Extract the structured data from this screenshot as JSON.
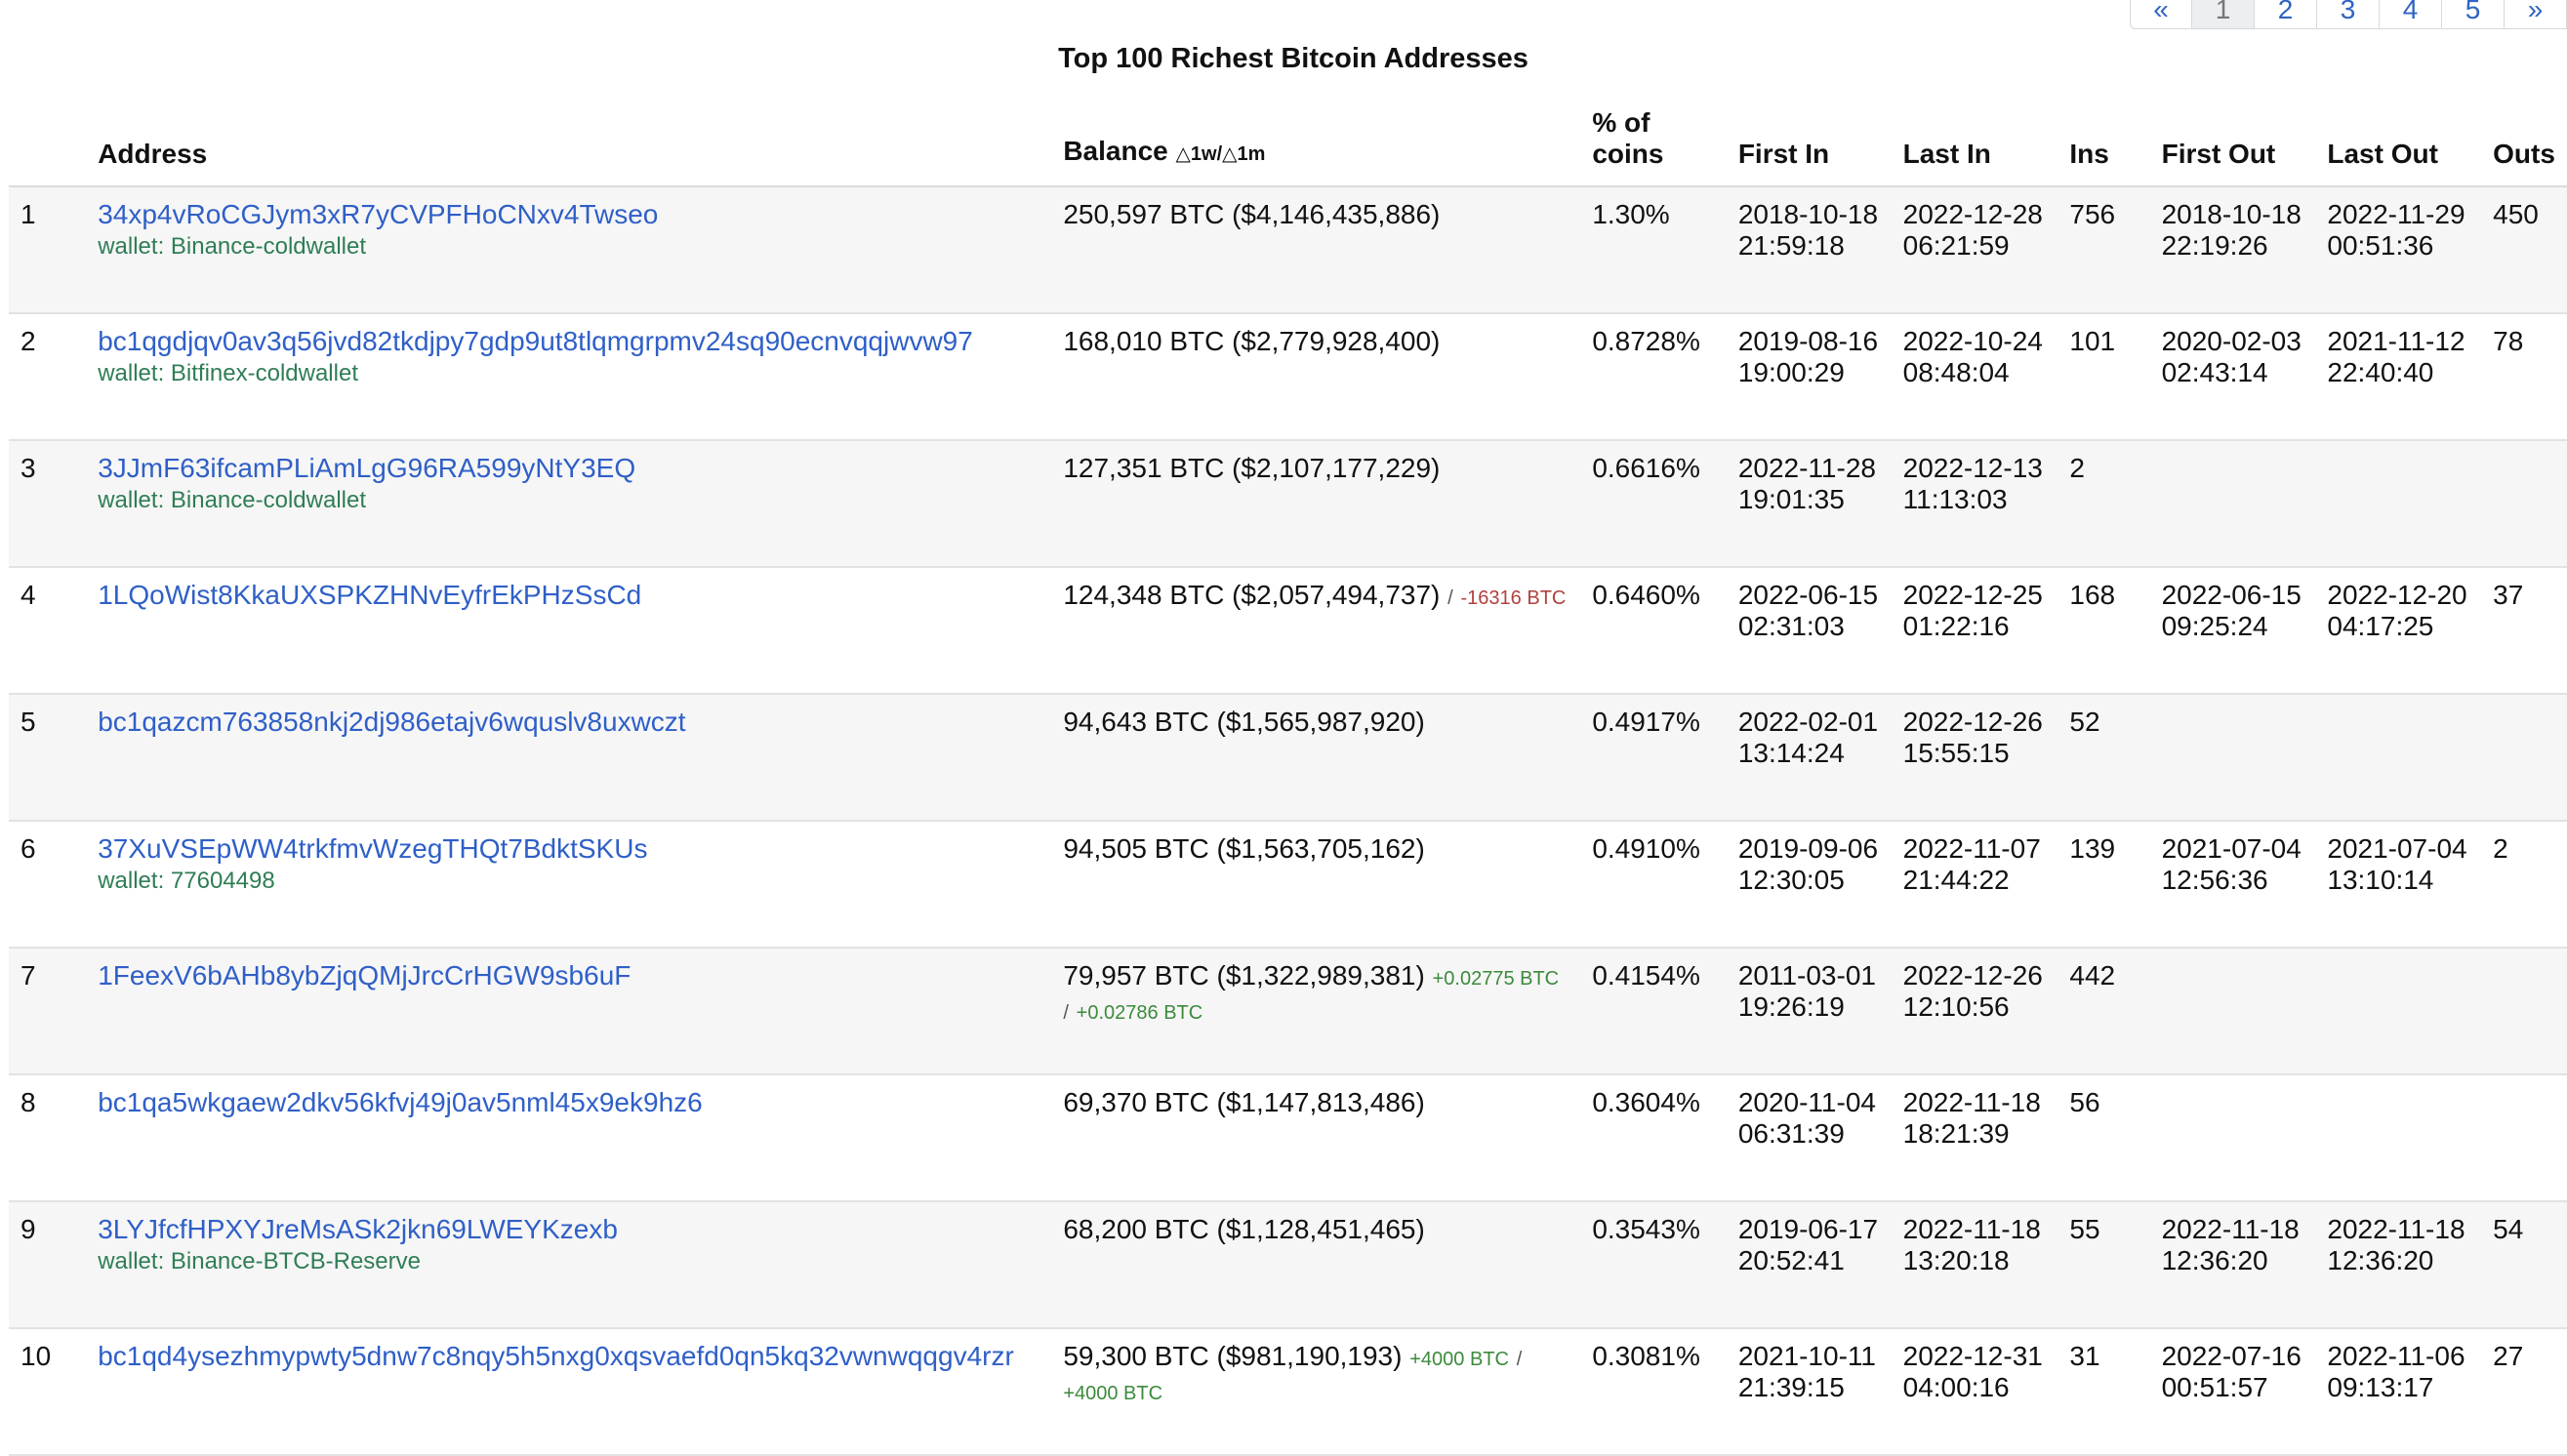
{
  "pagination": {
    "prev": "«",
    "pages": [
      "1",
      "2",
      "3",
      "4",
      "5"
    ],
    "next": "»",
    "current": "1"
  },
  "title": "Top 100 Richest Bitcoin Addresses",
  "columns": {
    "rank": "",
    "address": "Address",
    "balance": "Balance",
    "balance_delta": "△1w/△1m",
    "pct": "% of coins",
    "first_in": "First In",
    "last_in": "Last In",
    "ins": "Ins",
    "first_out": "First Out",
    "last_out": "Last Out",
    "outs": "Outs"
  },
  "rows": [
    {
      "rank": "1",
      "address": "34xp4vRoCGJym3xR7yCVPFHoCNxv4Twseo",
      "wallet": "wallet: Binance-coldwallet",
      "balance": "250,597 BTC ($4,146,435,886)",
      "chg1": "",
      "chg1_sign": "",
      "chg_sep": "",
      "chg2": "",
      "chg2_sign": "",
      "pct": "1.30%",
      "first_in": "2018-10-18 21:59:18",
      "last_in": "2022-12-28 06:21:59",
      "ins": "756",
      "first_out": "2018-10-18 22:19:26",
      "last_out": "2022-11-29 00:51:36",
      "outs": "450"
    },
    {
      "rank": "2",
      "address": "bc1qgdjqv0av3q56jvd82tkdjpy7gdp9ut8tlqmgrpmv24sq90ecnvqqjwvw97",
      "wallet": "wallet: Bitfinex-coldwallet",
      "balance": "168,010 BTC ($2,779,928,400)",
      "chg1": "",
      "chg1_sign": "",
      "chg_sep": "",
      "chg2": "",
      "chg2_sign": "",
      "pct": "0.8728%",
      "first_in": "2019-08-16 19:00:29",
      "last_in": "2022-10-24 08:48:04",
      "ins": "101",
      "first_out": "2020-02-03 02:43:14",
      "last_out": "2021-11-12 22:40:40",
      "outs": "78"
    },
    {
      "rank": "3",
      "address": "3JJmF63ifcamPLiAmLgG96RA599yNtY3EQ",
      "wallet": "wallet: Binance-coldwallet",
      "balance": "127,351 BTC ($2,107,177,229)",
      "chg1": "",
      "chg1_sign": "",
      "chg_sep": "",
      "chg2": "",
      "chg2_sign": "",
      "pct": "0.6616%",
      "first_in": "2022-11-28 19:01:35",
      "last_in": "2022-12-13 11:13:03",
      "ins": "2",
      "first_out": "",
      "last_out": "",
      "outs": ""
    },
    {
      "rank": "4",
      "address": "1LQoWist8KkaUXSPKZHNvEyfrEkPHzSsCd",
      "wallet": "",
      "balance": "124,348 BTC ($2,057,494,737)",
      "chg1": "/",
      "chg1_sign": "sep",
      "chg_sep": "",
      "chg2": "-16316 BTC",
      "chg2_sign": "neg",
      "pct": "0.6460%",
      "first_in": "2022-06-15 02:31:03",
      "last_in": "2022-12-25 01:22:16",
      "ins": "168",
      "first_out": "2022-06-15 09:25:24",
      "last_out": "2022-12-20 04:17:25",
      "outs": "37"
    },
    {
      "rank": "5",
      "address": "bc1qazcm763858nkj2dj986etajv6wquslv8uxwczt",
      "wallet": "",
      "balance": "94,643 BTC ($1,565,987,920)",
      "chg1": "",
      "chg1_sign": "",
      "chg_sep": "",
      "chg2": "",
      "chg2_sign": "",
      "pct": "0.4917%",
      "first_in": "2022-02-01 13:14:24",
      "last_in": "2022-12-26 15:55:15",
      "ins": "52",
      "first_out": "",
      "last_out": "",
      "outs": ""
    },
    {
      "rank": "6",
      "address": "37XuVSEpWW4trkfmvWzegTHQt7BdktSKUs",
      "wallet": "wallet: 77604498",
      "balance": "94,505 BTC ($1,563,705,162)",
      "chg1": "",
      "chg1_sign": "",
      "chg_sep": "",
      "chg2": "",
      "chg2_sign": "",
      "pct": "0.4910%",
      "first_in": "2019-09-06 12:30:05",
      "last_in": "2022-11-07 21:44:22",
      "ins": "139",
      "first_out": "2021-07-04 12:56:36",
      "last_out": "2021-07-04 13:10:14",
      "outs": "2"
    },
    {
      "rank": "7",
      "address": "1FeexV6bAHb8ybZjqQMjJrcCrHGW9sb6uF",
      "wallet": "",
      "balance": "79,957 BTC ($1,322,989,381)",
      "chg1": "+0.02775 BTC",
      "chg1_sign": "pos",
      "chg_sep": "/",
      "chg2": "+0.02786 BTC",
      "chg2_sign": "pos",
      "pct": "0.4154%",
      "first_in": "2011-03-01 19:26:19",
      "last_in": "2022-12-26 12:10:56",
      "ins": "442",
      "first_out": "",
      "last_out": "",
      "outs": ""
    },
    {
      "rank": "8",
      "address": "bc1qa5wkgaew2dkv56kfvj49j0av5nml45x9ek9hz6",
      "wallet": "",
      "balance": "69,370 BTC ($1,147,813,486)",
      "chg1": "",
      "chg1_sign": "",
      "chg_sep": "",
      "chg2": "",
      "chg2_sign": "",
      "pct": "0.3604%",
      "first_in": "2020-11-04 06:31:39",
      "last_in": "2022-11-18 18:21:39",
      "ins": "56",
      "first_out": "",
      "last_out": "",
      "outs": ""
    },
    {
      "rank": "9",
      "address": "3LYJfcfHPXYJreMsASk2jkn69LWEYKzexb",
      "wallet": "wallet: Binance-BTCB-Reserve",
      "balance": "68,200 BTC ($1,128,451,465)",
      "chg1": "",
      "chg1_sign": "",
      "chg_sep": "",
      "chg2": "",
      "chg2_sign": "",
      "pct": "0.3543%",
      "first_in": "2019-06-17 20:52:41",
      "last_in": "2022-11-18 13:20:18",
      "ins": "55",
      "first_out": "2022-11-18 12:36:20",
      "last_out": "2022-11-18 12:36:20",
      "outs": "54"
    },
    {
      "rank": "10",
      "address": "bc1qd4ysezhmypwty5dnw7c8nqy5h5nxg0xqsvaefd0qn5kq32vwnwqqgv4rzr",
      "wallet": "",
      "balance": "59,300 BTC ($981,190,193)",
      "chg1": "+4000 BTC",
      "chg1_sign": "pos",
      "chg_sep": "/",
      "chg2": "+4000 BTC",
      "chg2_sign": "pos",
      "pct": "0.3081%",
      "first_in": "2021-10-11 21:39:15",
      "last_in": "2022-12-31 04:00:16",
      "ins": "31",
      "first_out": "2022-07-16 00:51:57",
      "last_out": "2022-11-06 09:13:17",
      "outs": "27"
    }
  ]
}
